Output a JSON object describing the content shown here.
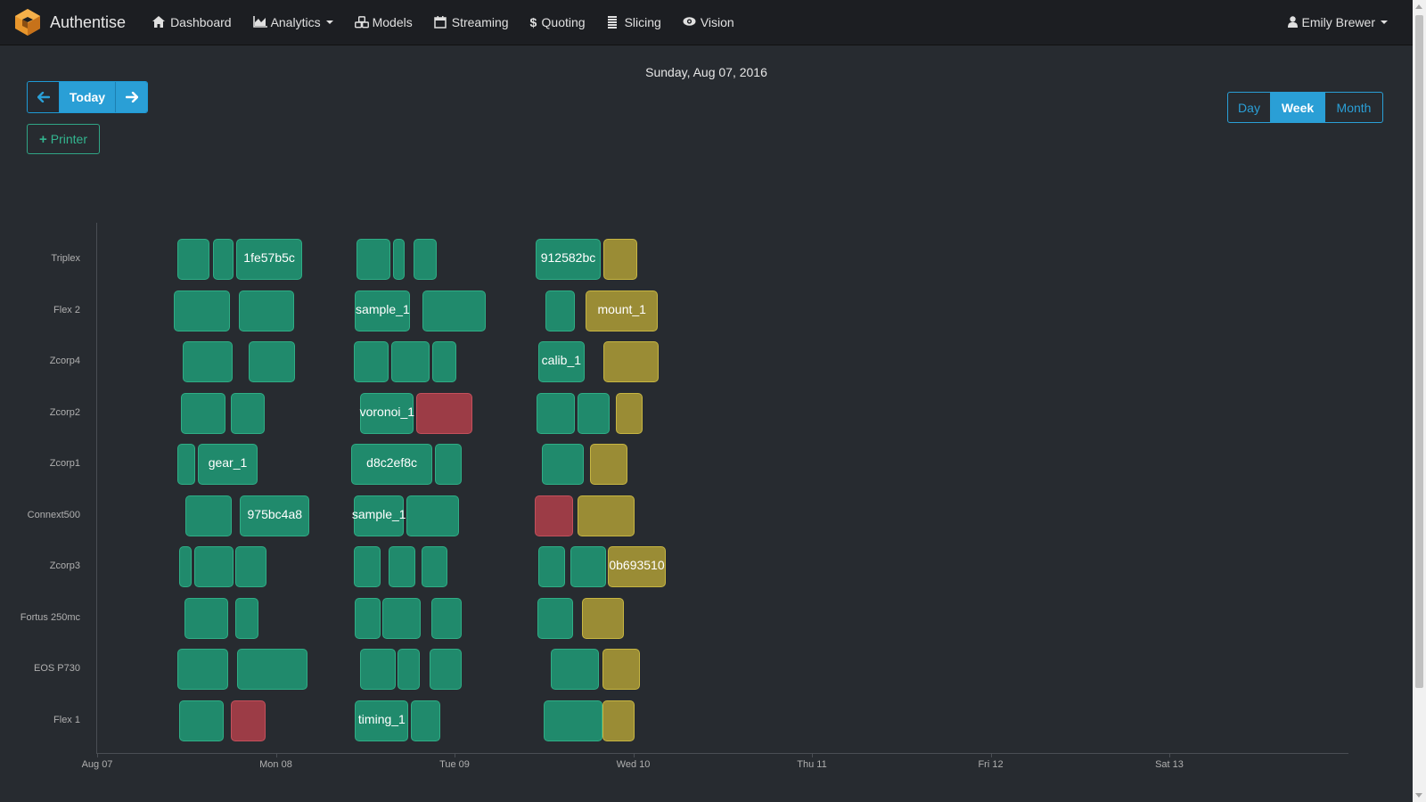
{
  "navbar": {
    "brand": "Authentise",
    "items": [
      {
        "label": "Dashboard",
        "icon": "home-icon"
      },
      {
        "label": "Analytics",
        "icon": "area-chart-icon",
        "dropdown": true
      },
      {
        "label": "Models",
        "icon": "cubes-icon"
      },
      {
        "label": "Streaming",
        "icon": "calendar-icon"
      },
      {
        "label": "Quoting",
        "icon": "dollar-icon"
      },
      {
        "label": "Slicing",
        "icon": "slices-icon"
      },
      {
        "label": "Vision",
        "icon": "eye-icon"
      }
    ],
    "user": "Emily Brewer"
  },
  "calendar": {
    "date_title": "Sunday, Aug 07, 2016",
    "today_label": "Today",
    "add_printer_label": "Printer",
    "views": [
      "Day",
      "Week",
      "Month"
    ],
    "active_view": "Week"
  },
  "colors": {
    "green": "#208a6c",
    "yellow": "#9a8c35",
    "red": "#9c3c46",
    "accent": "#2a9fd6"
  },
  "timeline": {
    "rows": [
      "Triplex",
      "Flex 2",
      "Zcorp4",
      "Zcorp2",
      "Zcorp1",
      "Connext500",
      "Zcorp3",
      "Fortus 250mc",
      "EOS P730",
      "Flex 1"
    ],
    "ticks": [
      "Aug 07",
      "Mon 08",
      "Tue 09",
      "Wed 10",
      "Thu 11",
      "Fri 12",
      "Sat 13"
    ],
    "jobs": [
      {
        "row": 0,
        "start": 0.448,
        "end": 0.631,
        "status": "green",
        "label": ""
      },
      {
        "row": 0,
        "start": 0.646,
        "end": 0.763,
        "status": "green",
        "label": ""
      },
      {
        "row": 0,
        "start": 0.778,
        "end": 1.148,
        "status": "green",
        "label": "1fe57b5c"
      },
      {
        "row": 0,
        "start": 1.453,
        "end": 1.641,
        "status": "green",
        "label": ""
      },
      {
        "row": 0,
        "start": 1.656,
        "end": 1.722,
        "status": "green",
        "label": ""
      },
      {
        "row": 0,
        "start": 1.768,
        "end": 1.9,
        "status": "green",
        "label": ""
      },
      {
        "row": 0,
        "start": 2.453,
        "end": 2.819,
        "status": "green",
        "label": "912582bc"
      },
      {
        "row": 0,
        "start": 2.834,
        "end": 3.022,
        "status": "yellow",
        "label": ""
      },
      {
        "row": 1,
        "start": 0.428,
        "end": 0.743,
        "status": "green",
        "label": ""
      },
      {
        "row": 1,
        "start": 0.794,
        "end": 1.102,
        "status": "green",
        "label": ""
      },
      {
        "row": 1,
        "start": 1.443,
        "end": 1.753,
        "status": "green",
        "label": "sample_1"
      },
      {
        "row": 1,
        "start": 1.819,
        "end": 2.173,
        "status": "green",
        "label": ""
      },
      {
        "row": 1,
        "start": 2.509,
        "end": 2.672,
        "status": "green",
        "label": ""
      },
      {
        "row": 1,
        "start": 2.733,
        "end": 3.139,
        "status": "yellow",
        "label": "mount_1"
      },
      {
        "row": 2,
        "start": 0.479,
        "end": 0.758,
        "status": "green",
        "label": ""
      },
      {
        "row": 2,
        "start": 0.85,
        "end": 1.107,
        "status": "green",
        "label": ""
      },
      {
        "row": 2,
        "start": 1.438,
        "end": 1.631,
        "status": "green",
        "label": ""
      },
      {
        "row": 2,
        "start": 1.646,
        "end": 1.86,
        "status": "green",
        "label": ""
      },
      {
        "row": 2,
        "start": 1.875,
        "end": 2.01,
        "status": "green",
        "label": ""
      },
      {
        "row": 2,
        "start": 2.468,
        "end": 2.728,
        "status": "green",
        "label": "calib_1"
      },
      {
        "row": 2,
        "start": 2.834,
        "end": 3.144,
        "status": "yellow",
        "label": ""
      },
      {
        "row": 3,
        "start": 0.468,
        "end": 0.718,
        "status": "green",
        "label": ""
      },
      {
        "row": 3,
        "start": 0.748,
        "end": 0.936,
        "status": "green",
        "label": ""
      },
      {
        "row": 3,
        "start": 1.473,
        "end": 1.773,
        "status": "green",
        "label": "voronoi_1"
      },
      {
        "row": 3,
        "start": 1.783,
        "end": 2.097,
        "status": "red",
        "label": ""
      },
      {
        "row": 3,
        "start": 2.458,
        "end": 2.672,
        "status": "green",
        "label": ""
      },
      {
        "row": 3,
        "start": 2.687,
        "end": 2.87,
        "status": "green",
        "label": ""
      },
      {
        "row": 3,
        "start": 2.901,
        "end": 3.053,
        "status": "yellow",
        "label": ""
      },
      {
        "row": 4,
        "start": 0.448,
        "end": 0.55,
        "status": "green",
        "label": ""
      },
      {
        "row": 4,
        "start": 0.565,
        "end": 0.896,
        "status": "green",
        "label": "gear_1"
      },
      {
        "row": 4,
        "start": 1.423,
        "end": 1.875,
        "status": "green",
        "label": "d8c2ef8c"
      },
      {
        "row": 4,
        "start": 1.891,
        "end": 2.041,
        "status": "green",
        "label": ""
      },
      {
        "row": 4,
        "start": 2.489,
        "end": 2.723,
        "status": "green",
        "label": ""
      },
      {
        "row": 4,
        "start": 2.758,
        "end": 2.967,
        "status": "yellow",
        "label": ""
      },
      {
        "row": 5,
        "start": 0.494,
        "end": 0.753,
        "status": "green",
        "label": ""
      },
      {
        "row": 5,
        "start": 0.799,
        "end": 1.189,
        "status": "green",
        "label": "975bc4a8"
      },
      {
        "row": 5,
        "start": 1.438,
        "end": 1.717,
        "status": "green",
        "label": "sample_1"
      },
      {
        "row": 5,
        "start": 1.732,
        "end": 2.026,
        "status": "green",
        "label": ""
      },
      {
        "row": 5,
        "start": 2.448,
        "end": 2.662,
        "status": "red",
        "label": ""
      },
      {
        "row": 5,
        "start": 2.687,
        "end": 3.007,
        "status": "yellow",
        "label": ""
      },
      {
        "row": 6,
        "start": 0.458,
        "end": 0.53,
        "status": "green",
        "label": ""
      },
      {
        "row": 6,
        "start": 0.545,
        "end": 0.763,
        "status": "green",
        "label": ""
      },
      {
        "row": 6,
        "start": 0.773,
        "end": 0.947,
        "status": "green",
        "label": ""
      },
      {
        "row": 6,
        "start": 1.438,
        "end": 1.585,
        "status": "green",
        "label": ""
      },
      {
        "row": 6,
        "start": 1.631,
        "end": 1.779,
        "status": "green",
        "label": ""
      },
      {
        "row": 6,
        "start": 1.814,
        "end": 1.962,
        "status": "green",
        "label": ""
      },
      {
        "row": 6,
        "start": 2.468,
        "end": 2.621,
        "status": "green",
        "label": ""
      },
      {
        "row": 6,
        "start": 2.646,
        "end": 2.85,
        "status": "green",
        "label": ""
      },
      {
        "row": 6,
        "start": 2.86,
        "end": 3.18,
        "status": "yellow",
        "label": "0b693510"
      },
      {
        "row": 7,
        "start": 0.489,
        "end": 0.733,
        "status": "green",
        "label": ""
      },
      {
        "row": 7,
        "start": 0.773,
        "end": 0.901,
        "status": "green",
        "label": ""
      },
      {
        "row": 7,
        "start": 1.443,
        "end": 1.585,
        "status": "green",
        "label": ""
      },
      {
        "row": 7,
        "start": 1.595,
        "end": 1.809,
        "status": "green",
        "label": ""
      },
      {
        "row": 7,
        "start": 1.87,
        "end": 2.041,
        "status": "green",
        "label": ""
      },
      {
        "row": 7,
        "start": 2.463,
        "end": 2.662,
        "status": "green",
        "label": ""
      },
      {
        "row": 7,
        "start": 2.713,
        "end": 2.946,
        "status": "yellow",
        "label": ""
      },
      {
        "row": 8,
        "start": 0.448,
        "end": 0.733,
        "status": "green",
        "label": ""
      },
      {
        "row": 8,
        "start": 0.784,
        "end": 1.178,
        "status": "green",
        "label": ""
      },
      {
        "row": 8,
        "start": 1.469,
        "end": 1.672,
        "status": "green",
        "label": ""
      },
      {
        "row": 8,
        "start": 1.682,
        "end": 1.804,
        "status": "green",
        "label": ""
      },
      {
        "row": 8,
        "start": 1.86,
        "end": 2.041,
        "status": "green",
        "label": ""
      },
      {
        "row": 8,
        "start": 2.54,
        "end": 2.809,
        "status": "green",
        "label": ""
      },
      {
        "row": 8,
        "start": 2.829,
        "end": 3.038,
        "status": "yellow",
        "label": ""
      },
      {
        "row": 9,
        "start": 0.458,
        "end": 0.707,
        "status": "green",
        "label": ""
      },
      {
        "row": 9,
        "start": 0.748,
        "end": 0.941,
        "status": "red",
        "label": ""
      },
      {
        "row": 9,
        "start": 1.443,
        "end": 1.743,
        "status": "green",
        "label": "timing_1"
      },
      {
        "row": 9,
        "start": 1.753,
        "end": 1.921,
        "status": "green",
        "label": ""
      },
      {
        "row": 9,
        "start": 2.499,
        "end": 2.829,
        "status": "green",
        "label": ""
      },
      {
        "row": 9,
        "start": 2.829,
        "end": 3.007,
        "status": "yellow",
        "label": ""
      }
    ]
  }
}
